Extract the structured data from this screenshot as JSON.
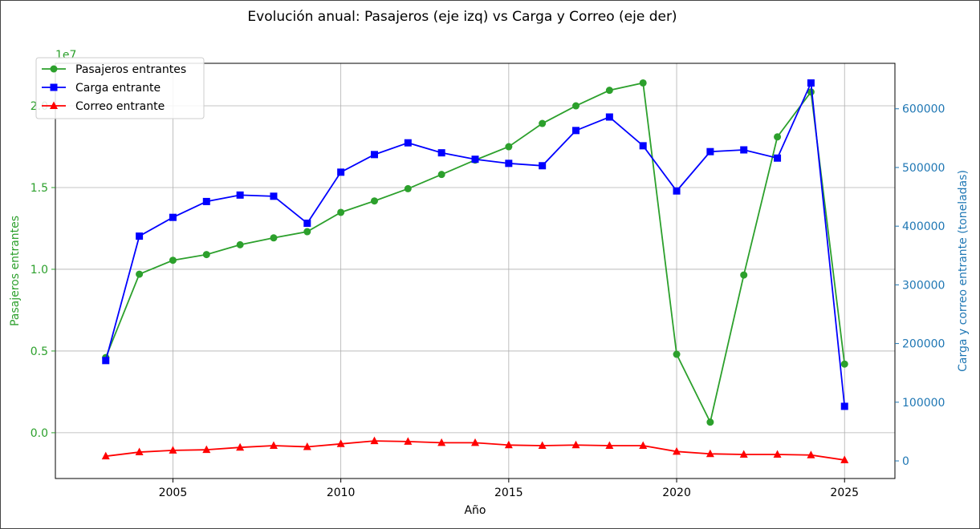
{
  "chart_data": {
    "type": "line",
    "title": "Evolución anual: Pasajeros (eje izq) vs Carga y Correo (eje der)",
    "xlabel": "Año",
    "ylabel_left": "Pasajeros entrantes",
    "ylabel_right": "Carga y correo entrante (toneladas)",
    "left_scale_label": "1e7",
    "x": [
      2003,
      2004,
      2005,
      2006,
      2007,
      2008,
      2009,
      2010,
      2011,
      2012,
      2013,
      2014,
      2015,
      2016,
      2017,
      2018,
      2019,
      2020,
      2021,
      2022,
      2023,
      2024,
      2025
    ],
    "x_ticks": [
      "2005",
      "2010",
      "2015",
      "2020",
      "2025"
    ],
    "left_ticks": [
      "0.0",
      "0.5",
      "1.0",
      "1.5",
      "2.0"
    ],
    "right_ticks": [
      "0",
      "100000",
      "200000",
      "300000",
      "400000",
      "500000",
      "600000"
    ],
    "xlim": [
      2001.5,
      2026.5
    ],
    "ylim_left": [
      -2800000,
      22600000
    ],
    "ylim_right": [
      -30000,
      677500
    ],
    "grid": true,
    "legend_position": "upper-left",
    "series": [
      {
        "name": "Pasajeros entrantes",
        "axis": "left",
        "color": "#2ca02c",
        "marker": "circle",
        "values": [
          4600000,
          9700000,
          10550000,
          10900000,
          11500000,
          11920000,
          12300000,
          13480000,
          14180000,
          14930000,
          15800000,
          16680000,
          17500000,
          18920000,
          20000000,
          20950000,
          21400000,
          4800000,
          650000,
          9650000,
          18100000,
          20850000,
          4200000
        ]
      },
      {
        "name": "Carga entrante",
        "axis": "right",
        "color": "#0000ff",
        "marker": "square",
        "values": [
          171000,
          383000,
          415000,
          442000,
          453000,
          451000,
          405000,
          492000,
          522000,
          542000,
          525000,
          514000,
          507000,
          503000,
          563000,
          586000,
          537000,
          460000,
          527000,
          530000,
          516000,
          644000,
          93000
        ]
      },
      {
        "name": "Correo entrante",
        "axis": "right",
        "color": "#ff0000",
        "marker": "triangle",
        "values": [
          8000,
          15000,
          18000,
          19000,
          23000,
          26000,
          24000,
          29000,
          34000,
          33000,
          31000,
          31000,
          27000,
          26000,
          27000,
          26000,
          26000,
          16000,
          12000,
          11000,
          11000,
          10000,
          1500
        ]
      }
    ]
  }
}
